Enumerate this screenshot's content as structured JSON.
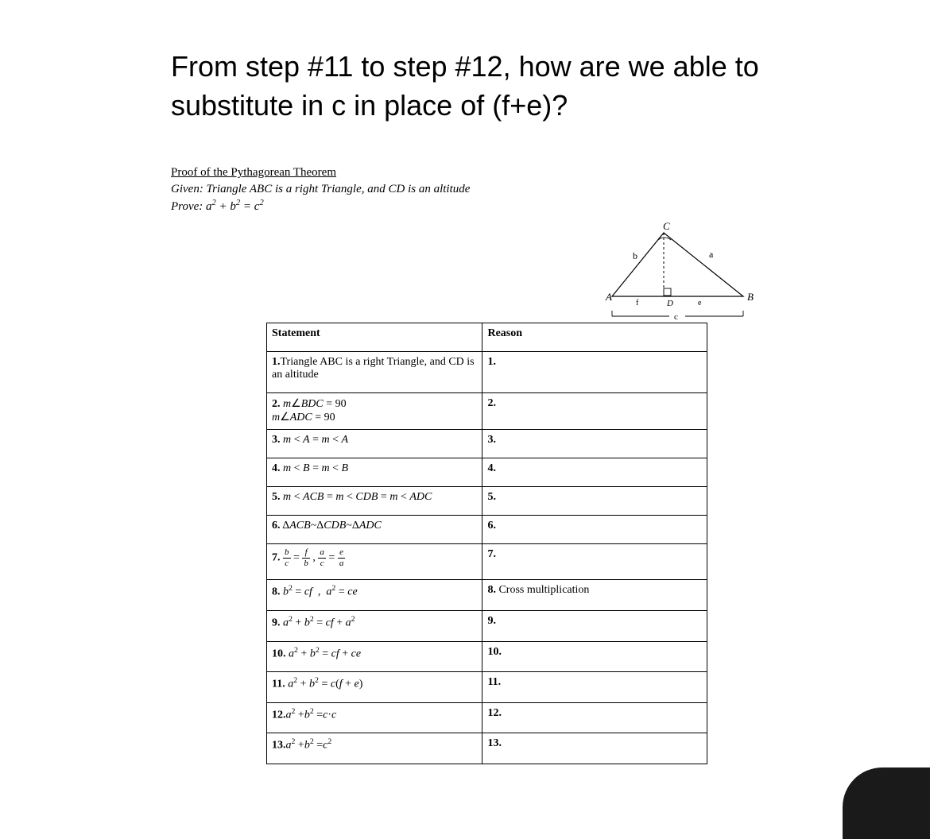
{
  "question": "From step #11 to step #12, how are we able to substitute in c in place of (f+e)?",
  "proofHeader": {
    "title": "Proof of the Pythagorean Theorem",
    "given": "Given: Triangle ABC is a right Triangle, and CD is an altitude",
    "prove_prefix": "Prove:  ",
    "prove_math_a": "a",
    "prove_math_b": "b",
    "prove_math_c": "c",
    "prove_math_2": "2"
  },
  "diagram": {
    "labels": {
      "A": "A",
      "B": "B",
      "C": "C",
      "D": "D",
      "a": "a",
      "b": "b",
      "c": "c",
      "e": "e",
      "f": "f"
    },
    "colors": {
      "stroke": "#000000",
      "altitude": "#000000"
    }
  },
  "table": {
    "headers": {
      "statement": "Statement",
      "reason": "Reason"
    },
    "rows": [
      {
        "n": "1.",
        "statement_html": "Triangle ABC is a right Triangle, and CD is an altitude",
        "reason": "1.",
        "tight": false
      },
      {
        "n": "2.",
        "statement_html": " <span class='it'>m</span>∠<span class='it'>BDC</span> = 90<br><span class='it'>m</span>∠<span class='it'>ADC</span> = 90",
        "reason": "2.",
        "tight": true
      },
      {
        "n": "3.",
        "statement_html": " <span class='it'>m</span> &lt; <span class='it'>A</span> = <span class='it'>m</span> &lt; <span class='it'>A</span>",
        "reason": "3.",
        "tight": false
      },
      {
        "n": "4.",
        "statement_html": " <span class='it'>m</span> &lt; <span class='it'>B</span> = <span class='it'>m</span> &lt; <span class='it'>B</span>",
        "reason": "4.",
        "tight": false
      },
      {
        "n": "5.",
        "statement_html": " <span class='it'>m</span> &lt; <span class='it'>ACB</span> = <span class='it'>m</span> &lt; <span class='it'>CDB</span> = <span class='it'>m</span> &lt; <span class='it'>ADC</span>",
        "reason": "5.",
        "tight": false
      },
      {
        "n": "6.",
        "statement_html": " Δ<span class='it'>ACB</span>~Δ<span class='it'>CDB</span>~Δ<span class='it'>ADC</span>",
        "reason": "6.",
        "tight": false
      },
      {
        "n": "7.",
        "statement_html": " <span class='frac'><span class='num it'>b</span><span class='den it'>c</span></span> = <span class='frac'><span class='num it'>f</span><span class='den it'>b</span></span> , <span class='frac'><span class='num it'>a</span><span class='den it'>c</span></span> = <span class='frac'><span class='num it'>e</span><span class='den it'>a</span></span>",
        "reason": "7.",
        "tight": false
      },
      {
        "n": "8.",
        "statement_html": " <span class='it'>b</span><span class='sup'>2</span> = <span class='it'>cf</span>&nbsp;&nbsp;,&nbsp;&nbsp;<span class='it'>a</span><span class='sup'>2</span> = <span class='it'>ce</span>",
        "reason": "8.  Cross multiplication",
        "tight": false
      },
      {
        "n": "9.",
        "statement_html": " <span class='it'>a</span><span class='sup'>2</span> + <span class='it'>b</span><span class='sup'>2</span> = <span class='it'>cf</span> + <span class='it'>a</span><span class='sup'>2</span>",
        "reason": "9.",
        "tight": false
      },
      {
        "n": "10.",
        "statement_html": " <span class='it'>a</span><span class='sup'>2</span> + <span class='it'>b</span><span class='sup'>2</span> = <span class='it'>cf</span> + <span class='it'>ce</span>",
        "reason": "10.",
        "tight": false
      },
      {
        "n": "11.",
        "statement_html": " <span class='it'>a</span><span class='sup'>2</span> + <span class='it'>b</span><span class='sup'>2</span> = <span class='it'>c</span>(<span class='it'>f</span> + <span class='it'>e</span>)",
        "reason": "11.",
        "tight": false
      },
      {
        "n": "12.",
        "statement_html": "<span class='it'>a</span><span class='sup'>2</span> +<span class='it'>b</span><span class='sup'>2</span> =<span class='it'>c</span>·<span class='it'>c</span>",
        "reason": "12.",
        "tight": false
      },
      {
        "n": "13.",
        "statement_html": "<span class='it'>a</span><span class='sup'>2</span> +<span class='it'>b</span><span class='sup'>2</span> =<span class='it'>c</span><span class='sup'>2</span>",
        "reason": "13.",
        "tight": false
      }
    ]
  }
}
